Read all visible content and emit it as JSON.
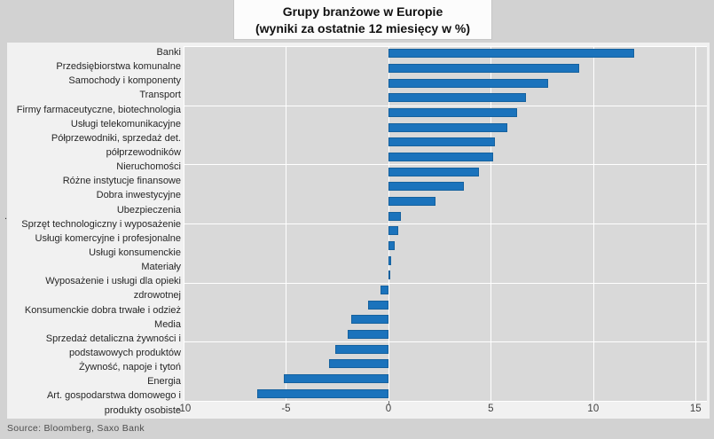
{
  "title": {
    "line1": "Grupy branżowe w Europie",
    "line2": "(wyniki za ostatnie 12 miesięcy w %)"
  },
  "source": "Source: Bloomberg, Saxo Bank",
  "stray_mark": ".",
  "colors": {
    "bar": "#1b73bc",
    "bar_border": "#15619e",
    "plot_background": "#d9d9d9",
    "chart_background": "#f1f1f1",
    "canvas_background": "#d2d2d2",
    "gridline": "#ffffff"
  },
  "chart_data": {
    "type": "bar",
    "orientation": "horizontal",
    "title": "Grupy branżowe w Europie (wyniki za ostatnie 12 miesięcy w %)",
    "xlabel": "",
    "ylabel": "",
    "xlim": [
      -10,
      15.55
    ],
    "x_ticks": [
      -10,
      -5,
      0,
      5,
      10,
      15
    ],
    "grid": true,
    "legend": false,
    "categories": [
      "Banki",
      "Przedsiębiorstwa komunalne",
      "Samochody i komponenty",
      "Transport",
      "Firmy farmaceutyczne, biotechnologia",
      "Usługi telekomunikacyjne",
      "Półprzewodniki, sprzedaż det.",
      "półprzewodników",
      "Nieruchomości",
      "Różne instytucje finansowe",
      "Dobra inwestycyjne",
      "Ubezpieczenia",
      "Sprzęt technologiczny i wyposażenie",
      "Usługi komercyjne i profesjonalne",
      "Usługi konsumenckie",
      "Materiały",
      "Wyposażenie i usługi dla opieki zdrowotnej",
      "Konsumenckie dobra trwałe i odzież",
      "Media",
      "Sprzedaż detaliczna żywności i",
      "podstawowych produktów",
      "Żywność, napoje i tytoń",
      "Energia",
      "Art. gospodarstwa domowego i produkty osobiste"
    ],
    "values": [
      12.0,
      9.3,
      7.8,
      6.7,
      6.3,
      5.8,
      5.2,
      5.1,
      4.4,
      3.7,
      2.3,
      0.6,
      0.5,
      0.3,
      0.15,
      0.1,
      -0.4,
      -1.0,
      -1.8,
      -2.0,
      -2.6,
      -2.9,
      -5.1,
      -6.4
    ],
    "label_lines": [
      [
        "Banki"
      ],
      [
        "Przedsiębiorstwa komunalne"
      ],
      [
        "Samochody i komponenty"
      ],
      [
        "Transport"
      ],
      [
        "Firmy farmaceutyczne, biotechnologia"
      ],
      [
        "Usługi telekomunikacyjne"
      ],
      [
        "Półprzewodniki, sprzedaż det."
      ],
      [
        "półprzewodników"
      ],
      [
        "Nieruchomości"
      ],
      [
        "Różne instytucje finansowe"
      ],
      [
        "Dobra inwestycyjne"
      ],
      [
        "Ubezpieczenia"
      ],
      [
        "Sprzęt technologiczny i wyposażenie"
      ],
      [
        "Usługi komercyjne i profesjonalne"
      ],
      [
        "Usługi konsumenckie"
      ],
      [
        "Materiały"
      ],
      [
        "Wyposażenie i usługi dla opieki",
        "zdrowotnej"
      ],
      [
        "Konsumenckie dobra trwałe i odzież"
      ],
      [
        "Media"
      ],
      [
        "Sprzedaż detaliczna żywności i"
      ],
      [
        "podstawowych produktów"
      ],
      [
        "Żywność, napoje i tytoń"
      ],
      [
        "Energia"
      ],
      [
        "Art. gospodarstwa domowego i",
        "produkty osobiste"
      ]
    ]
  }
}
